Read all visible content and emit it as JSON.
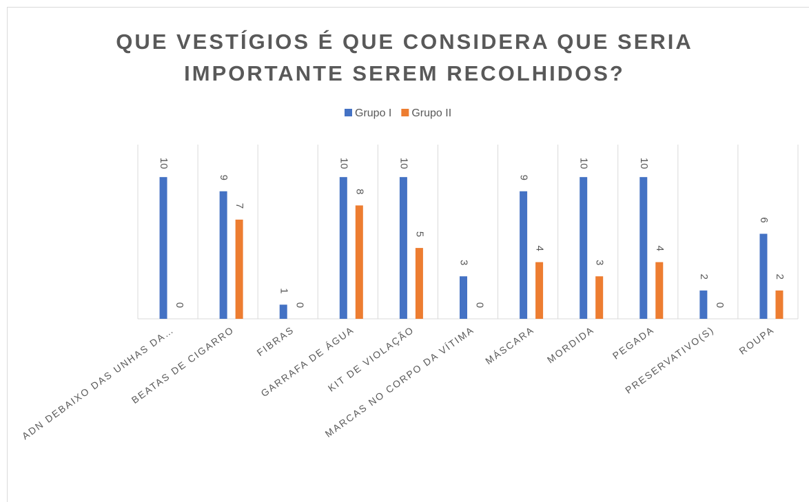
{
  "chart_data": {
    "type": "bar",
    "title": "QUE VESTÍGIOS É QUE CONSIDERA QUE SERIA IMPORTANTE SEREM RECOLHIDOS?",
    "categories": [
      "ADN DEBAIXO DAS UNHAS DA…",
      "BEATAS DE CIGARRO",
      "FIBRAS",
      "GARRAFA DE ÁGUA",
      "KIT DE VIOLAÇÃO",
      "MARCAS NO CORPO DA VÍTIMA",
      "MÁSCARA",
      "MORDIDA",
      "PEGADA",
      "PRESERVATIVO(S)",
      "ROUPA"
    ],
    "series": [
      {
        "name": "Grupo I",
        "color": "#4472c4",
        "values": [
          10,
          9,
          1,
          10,
          10,
          3,
          9,
          10,
          10,
          2,
          6
        ]
      },
      {
        "name": "Grupo II",
        "color": "#ed7d31",
        "values": [
          0,
          7,
          0,
          8,
          5,
          0,
          4,
          3,
          4,
          0,
          2
        ]
      }
    ],
    "ylim": [
      0,
      12
    ],
    "legend": "top"
  }
}
